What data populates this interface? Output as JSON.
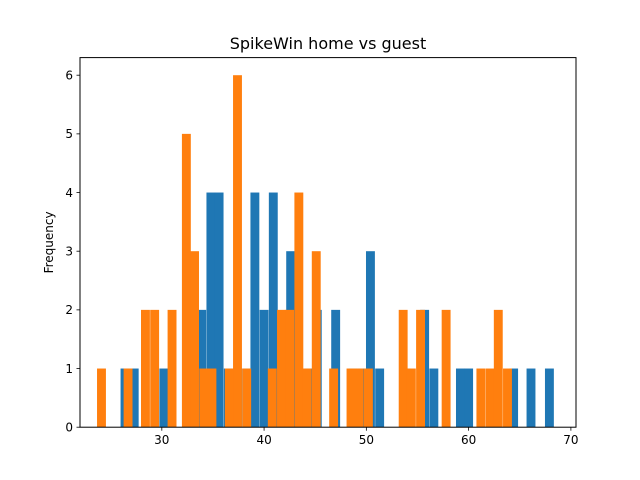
{
  "chart_data": {
    "type": "bar",
    "title": "SpikeWin home vs guest",
    "xlabel": "",
    "ylabel": "Frequency",
    "xlim": [
      22,
      70.5
    ],
    "ylim": [
      0,
      6.3
    ],
    "xticks": [
      30,
      40,
      50,
      60,
      70
    ],
    "yticks": [
      0,
      1,
      2,
      3,
      4,
      5,
      6
    ],
    "grid": false,
    "series": [
      {
        "color": "#1f77b4",
        "bin_width": 0.87,
        "bins": [
          {
            "x": 26.4,
            "count": 1
          },
          {
            "x": 27.3,
            "count": 1
          },
          {
            "x": 30.2,
            "count": 1
          },
          {
            "x": 33.9,
            "count": 2
          },
          {
            "x": 34.8,
            "count": 4
          },
          {
            "x": 35.6,
            "count": 4
          },
          {
            "x": 36.5,
            "count": 1
          },
          {
            "x": 37.4,
            "count": 1
          },
          {
            "x": 38.3,
            "count": 1
          },
          {
            "x": 39.1,
            "count": 4
          },
          {
            "x": 40.0,
            "count": 2
          },
          {
            "x": 40.9,
            "count": 4
          },
          {
            "x": 42.6,
            "count": 3
          },
          {
            "x": 44.4,
            "count": 1
          },
          {
            "x": 45.2,
            "count": 2
          },
          {
            "x": 47.0,
            "count": 2
          },
          {
            "x": 48.7,
            "count": 1
          },
          {
            "x": 49.6,
            "count": 1
          },
          {
            "x": 50.4,
            "count": 3
          },
          {
            "x": 51.3,
            "count": 1
          },
          {
            "x": 53.9,
            "count": 1
          },
          {
            "x": 55.7,
            "count": 2
          },
          {
            "x": 56.6,
            "count": 1
          },
          {
            "x": 59.2,
            "count": 1
          },
          {
            "x": 60.0,
            "count": 1
          },
          {
            "x": 64.4,
            "count": 1
          },
          {
            "x": 66.1,
            "count": 1
          },
          {
            "x": 67.9,
            "count": 1
          }
        ]
      },
      {
        "color": "#ff7f0e",
        "bin_width": 0.87,
        "bins": [
          {
            "x": 24.1,
            "count": 1
          },
          {
            "x": 26.7,
            "count": 1
          },
          {
            "x": 28.4,
            "count": 2
          },
          {
            "x": 29.3,
            "count": 2
          },
          {
            "x": 31.0,
            "count": 2
          },
          {
            "x": 32.4,
            "count": 5
          },
          {
            "x": 33.2,
            "count": 3
          },
          {
            "x": 34.1,
            "count": 1
          },
          {
            "x": 34.9,
            "count": 1
          },
          {
            "x": 36.6,
            "count": 1
          },
          {
            "x": 37.4,
            "count": 6
          },
          {
            "x": 38.3,
            "count": 1
          },
          {
            "x": 40.8,
            "count": 1
          },
          {
            "x": 41.7,
            "count": 2
          },
          {
            "x": 42.5,
            "count": 2
          },
          {
            "x": 43.4,
            "count": 4
          },
          {
            "x": 44.2,
            "count": 1
          },
          {
            "x": 45.1,
            "count": 3
          },
          {
            "x": 46.8,
            "count": 1
          },
          {
            "x": 48.5,
            "count": 1
          },
          {
            "x": 49.3,
            "count": 1
          },
          {
            "x": 50.2,
            "count": 1
          },
          {
            "x": 53.6,
            "count": 2
          },
          {
            "x": 54.4,
            "count": 1
          },
          {
            "x": 55.3,
            "count": 2
          },
          {
            "x": 57.8,
            "count": 2
          },
          {
            "x": 61.2,
            "count": 1
          },
          {
            "x": 62.1,
            "count": 1
          },
          {
            "x": 62.9,
            "count": 2
          },
          {
            "x": 63.8,
            "count": 1
          }
        ]
      }
    ]
  }
}
